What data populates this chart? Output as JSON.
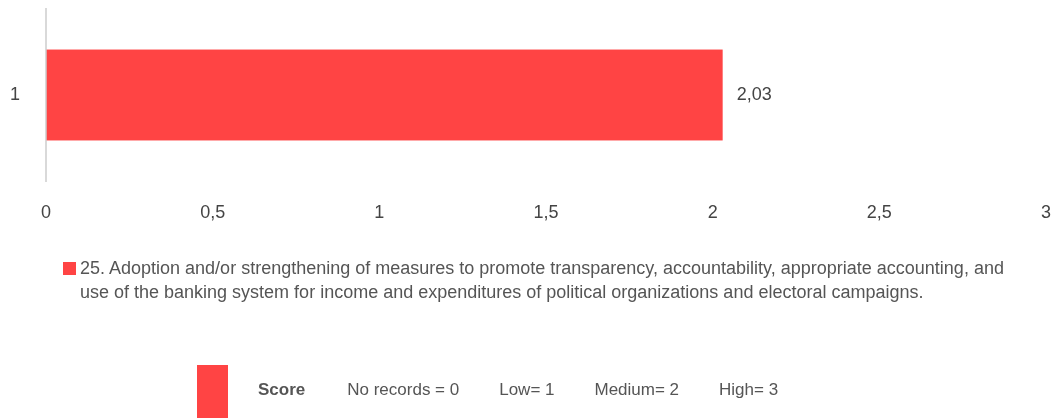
{
  "chart_data": {
    "type": "bar",
    "orientation": "horizontal",
    "categories": [
      "1"
    ],
    "series": [
      {
        "name": "25. Adoption and/or strengthening of measures to promote transparency, accountability, appropriate accounting, and use of the banking system for income and expenditures of political organizations and electoral campaigns.",
        "color": "#ff4444",
        "values": [
          2.03
        ],
        "value_labels": [
          "2,03"
        ]
      }
    ],
    "xlim": [
      0,
      3
    ],
    "xticks": [
      0,
      {
        "value": 0.5,
        "label": "0,5"
      },
      1,
      {
        "value": 1.5,
        "label": "1,5"
      },
      2,
      {
        "value": 2.5,
        "label": "2,5"
      },
      3
    ],
    "grid": false,
    "legend": "bottom",
    "annotations": [
      "Score",
      "No records = 0",
      "Low= 1",
      "Medium= 2",
      "High= 3"
    ]
  }
}
